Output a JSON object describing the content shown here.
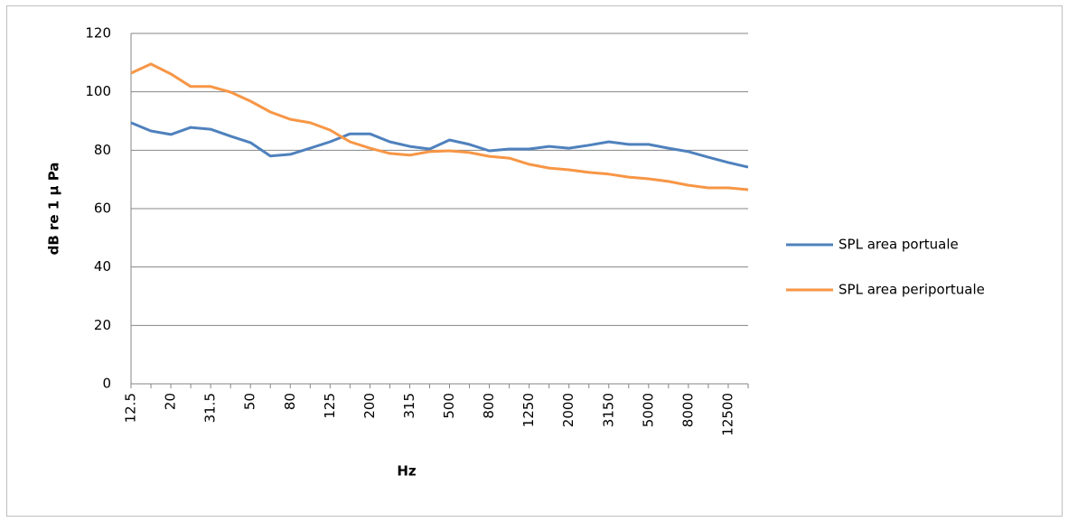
{
  "chart_data": {
    "type": "line",
    "x_label": "Hz",
    "y_label": "dB re 1 µ Pa",
    "categories": [
      "12.5",
      null,
      "20",
      null,
      "31.5",
      null,
      "50",
      null,
      "80",
      null,
      "125",
      null,
      "200",
      null,
      "315",
      null,
      "500",
      null,
      "800",
      null,
      "1250",
      null,
      "2000",
      null,
      "3150",
      null,
      "5000",
      null,
      "8000",
      null,
      "12500",
      null
    ],
    "series": [
      {
        "name": "SPL area portuale",
        "color": "#4f81bd",
        "values": [
          89.4,
          86.6,
          85.4,
          87.8,
          87.2,
          84.8,
          82.6,
          78.0,
          78.6,
          80.7,
          82.9,
          85.6,
          85.6,
          82.9,
          81.3,
          80.4,
          83.5,
          82.0,
          79.8,
          80.4,
          80.4,
          81.3,
          80.7,
          81.7,
          82.9,
          82.0,
          82.0,
          80.7,
          79.5,
          77.6,
          75.8,
          74.2
        ]
      },
      {
        "name": "SPL area periportuale",
        "color": "#f79646",
        "values": [
          106.4,
          109.5,
          106.1,
          101.8,
          101.8,
          99.9,
          96.8,
          93.1,
          90.6,
          89.4,
          86.9,
          82.9,
          80.7,
          78.9,
          78.3,
          79.5,
          79.8,
          79.2,
          77.9,
          77.3,
          75.2,
          73.9,
          73.3,
          72.4,
          71.8,
          70.8,
          70.2,
          69.3,
          68.0,
          67.1,
          67.1,
          66.5
        ]
      }
    ],
    "ylim": [
      0,
      120
    ],
    "yticks": [
      0,
      20,
      40,
      60,
      80,
      100,
      120
    ],
    "grid": true,
    "legend": "right"
  }
}
